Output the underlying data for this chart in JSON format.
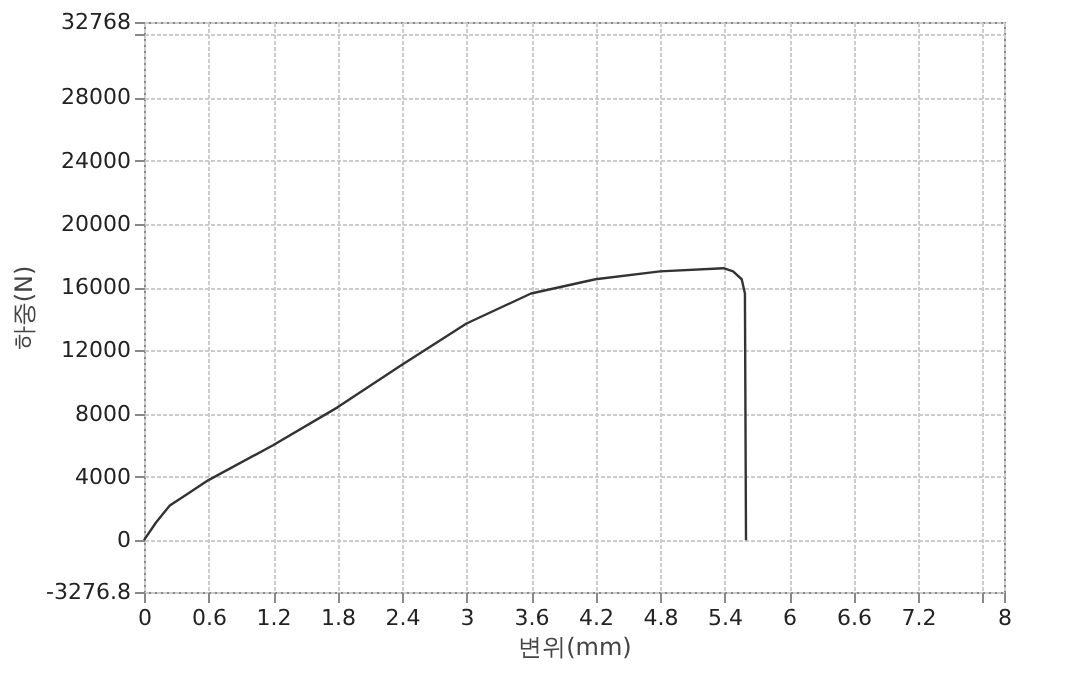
{
  "chart_data": {
    "type": "line",
    "xlabel": "변위(mm)",
    "ylabel": "하중(N)",
    "x": [
      0,
      0.11,
      0.24,
      0.4,
      0.6,
      1.2,
      1.8,
      2.4,
      3.0,
      3.6,
      4.2,
      4.8,
      5.39,
      5.48,
      5.56,
      5.59,
      5.6
    ],
    "series": [
      {
        "color": "#333333",
        "values": [
          0,
          1100,
          2200,
          2900,
          3800,
          6000,
          8400,
          11100,
          13700,
          15600,
          16500,
          17000,
          17200,
          17000,
          16500,
          15600,
          0
        ]
      }
    ],
    "xlim": [
      0,
      8
    ],
    "ylim": [
      -3276.8,
      32768
    ],
    "xticks": [
      0,
      0.6,
      1.2,
      1.8,
      2.4,
      3,
      3.6,
      4.2,
      4.8,
      5.4,
      6,
      6.6,
      7.2,
      {
        "value": 7.8,
        "label": null
      },
      8
    ],
    "yticks": [
      -3276.8,
      0,
      4000,
      8000,
      12000,
      16000,
      20000,
      24000,
      28000,
      {
        "value": 32000,
        "label": null
      },
      32768
    ],
    "grid": true,
    "marker": "none",
    "line_style": "solid"
  }
}
